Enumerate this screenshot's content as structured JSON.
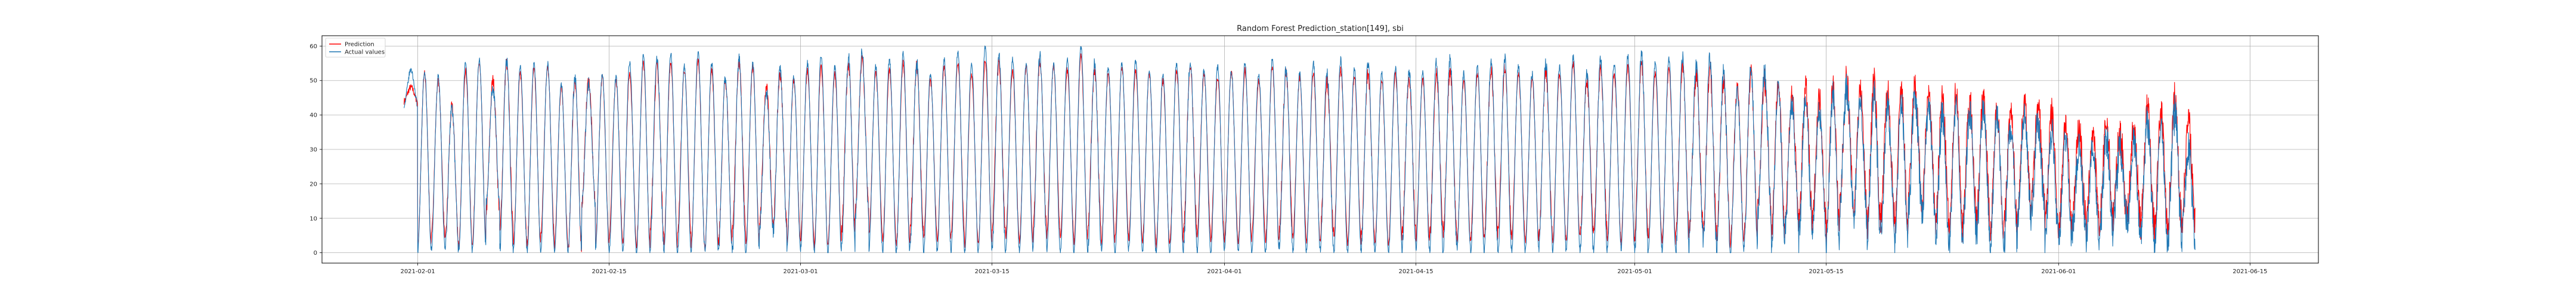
{
  "chart_data": {
    "type": "line",
    "title": "Random Forest Prediction_station[149], sbi",
    "xlabel": "",
    "ylabel": "",
    "x_range": [
      "2021-01-25",
      "2021-06-20"
    ],
    "x_ticks": [
      "2021-02-01",
      "2021-02-15",
      "2021-03-01",
      "2021-03-15",
      "2021-04-01",
      "2021-04-15",
      "2021-05-01",
      "2021-05-15",
      "2021-06-01",
      "2021-06-15"
    ],
    "ylim": [
      -3,
      63
    ],
    "y_ticks": [
      0,
      10,
      20,
      30,
      40,
      50,
      60
    ],
    "grid": true,
    "legend_position": "top-left",
    "colors": {
      "prediction": "#ff0000",
      "actual": "#1f77b4"
    },
    "data_span": [
      "2021-01-31",
      "2021-06-09"
    ],
    "samples_per_day": 48,
    "series": [
      {
        "name": "Prediction",
        "color": "#ff0000",
        "daily_min": [
          44,
          2,
          5,
          3,
          2,
          3,
          12,
          6,
          3,
          2,
          5,
          2,
          1,
          14,
          3,
          4,
          3,
          2,
          6,
          2,
          5,
          2,
          1,
          3,
          6,
          2,
          9,
          8,
          3,
          4,
          2,
          3,
          6,
          12,
          5,
          3,
          2,
          6,
          4,
          3,
          5,
          2,
          3,
          6,
          4,
          3,
          7,
          5,
          4,
          3,
          6,
          3,
          5,
          4,
          3,
          2,
          3,
          6,
          5,
          4,
          4,
          3,
          5,
          3,
          6,
          4,
          3,
          5,
          4,
          3,
          5,
          2,
          3,
          6,
          4,
          5,
          6,
          3,
          4,
          5,
          6,
          4,
          3,
          5,
          3,
          4,
          5,
          6,
          4,
          3,
          5,
          4,
          3,
          5,
          8,
          6,
          4,
          3,
          5,
          12,
          6,
          10,
          8,
          9,
          5,
          14,
          12,
          8,
          10,
          6,
          15,
          12,
          8,
          6,
          10,
          9,
          5,
          7,
          12,
          14,
          8,
          6,
          10,
          7,
          9,
          12,
          10,
          8,
          6,
          9,
          8
        ],
        "daily_max": [
          48,
          52,
          50,
          42,
          53,
          55,
          50,
          55,
          52,
          53,
          54,
          48,
          50,
          50,
          51,
          50,
          52,
          55,
          54,
          55,
          53,
          56,
          53,
          50,
          55,
          54,
          48,
          52,
          50,
          53,
          54,
          52,
          55,
          56,
          52,
          53,
          55,
          54,
          50,
          54,
          55,
          52,
          56,
          55,
          53,
          54,
          56,
          54,
          53,
          57,
          53,
          52,
          54,
          53,
          52,
          50,
          53,
          54,
          52,
          51,
          52,
          53,
          50,
          54,
          52,
          51,
          52,
          50,
          53,
          51,
          52,
          50,
          52,
          51,
          50,
          52,
          53,
          50,
          52,
          53,
          54,
          52,
          50,
          53,
          52,
          55,
          50,
          53,
          52,
          54,
          55,
          52,
          53,
          54,
          52,
          53,
          50,
          48,
          52,
          50,
          49,
          46,
          47,
          45,
          48,
          50,
          47,
          49,
          46,
          47,
          48,
          46,
          45,
          47,
          44,
          46,
          42,
          40,
          44,
          42,
          40,
          38,
          36,
          35,
          38,
          34,
          36,
          42,
          41,
          44,
          38
        ],
        "daily_noise": [
          1,
          1,
          1,
          2,
          1,
          1,
          2,
          2,
          1,
          1,
          1,
          1,
          2,
          2,
          1,
          1,
          1,
          1,
          2,
          1,
          1,
          1,
          1,
          2,
          2,
          1,
          2,
          2,
          1,
          1,
          1,
          1,
          2,
          2,
          1,
          1,
          1,
          2,
          1,
          1,
          1,
          1,
          1,
          2,
          1,
          1,
          2,
          1,
          1,
          1,
          2,
          1,
          1,
          1,
          1,
          1,
          1,
          2,
          1,
          1,
          1,
          1,
          1,
          1,
          2,
          1,
          1,
          2,
          1,
          1,
          2,
          1,
          1,
          2,
          1,
          2,
          2,
          1,
          1,
          2,
          2,
          1,
          1,
          2,
          1,
          1,
          2,
          2,
          1,
          1,
          2,
          1,
          1,
          2,
          3,
          3,
          3,
          2,
          3,
          4,
          3,
          4,
          5,
          4,
          4,
          5,
          4,
          5,
          5,
          4,
          5,
          4,
          5,
          4,
          5,
          5,
          4,
          5,
          4,
          5,
          5,
          4,
          5,
          4,
          5,
          6,
          5,
          5,
          4,
          6,
          5
        ]
      },
      {
        "name": "Actual values",
        "color": "#1f77b4",
        "daily_min": [
          43,
          0,
          1,
          1,
          0,
          1,
          14,
          1,
          1,
          0,
          1,
          0,
          0,
          14,
          1,
          0,
          0,
          0,
          2,
          0,
          0,
          1,
          0,
          1,
          0,
          0,
          7,
          6,
          1,
          1,
          0,
          0,
          1,
          10,
          1,
          0,
          0,
          1,
          0,
          1,
          0,
          0,
          1,
          0,
          1,
          0,
          3,
          0,
          0,
          0,
          1,
          0,
          0,
          1,
          0,
          0,
          0,
          1,
          0,
          0,
          1,
          0,
          0,
          0,
          2,
          0,
          1,
          0,
          0,
          0,
          1,
          0,
          0,
          2,
          1,
          0,
          2,
          1,
          0,
          1,
          0,
          0,
          1,
          2,
          0,
          1,
          0,
          0,
          2,
          1,
          0,
          1,
          0,
          0,
          5,
          2,
          1,
          0,
          1,
          10,
          1,
          7,
          4,
          6,
          1,
          12,
          9,
          3,
          7,
          2,
          12,
          10,
          3,
          2,
          6,
          5,
          1,
          3,
          10,
          12,
          4,
          2,
          7,
          3,
          5,
          10,
          6,
          4,
          2,
          6,
          4
        ],
        "daily_max": [
          53,
          53,
          51,
          42,
          55,
          56,
          48,
          56,
          54,
          55,
          55,
          49,
          51,
          49,
          52,
          51,
          55,
          57,
          57,
          58,
          54,
          58,
          55,
          51,
          56,
          55,
          47,
          53,
          51,
          55,
          57,
          54,
          57,
          58,
          54,
          56,
          58,
          55,
          52,
          56,
          58,
          55,
          60,
          57,
          56,
          55,
          57,
          55,
          56,
          60,
          55,
          54,
          55,
          56,
          53,
          52,
          55,
          56,
          53,
          54,
          53,
          55,
          52,
          56,
          53,
          52,
          55,
          52,
          56,
          53,
          55,
          52,
          54,
          53,
          52,
          55,
          56,
          52,
          54,
          55,
          56,
          54,
          52,
          55,
          54,
          57,
          52,
          56,
          55,
          57,
          58,
          55,
          56,
          57,
          54,
          56,
          52,
          47,
          54,
          52,
          48,
          44,
          45,
          41,
          46,
          48,
          44,
          47,
          42,
          44,
          45,
          42,
          40,
          43,
          41,
          42,
          40,
          36,
          40,
          38,
          35,
          33,
          30,
          31,
          33,
          30,
          32,
          38,
          36,
          40,
          30
        ],
        "daily_noise": [
          1,
          1,
          1,
          2,
          1,
          1,
          2,
          2,
          1,
          1,
          1,
          1,
          2,
          2,
          1,
          1,
          1,
          1,
          2,
          1,
          1,
          1,
          1,
          2,
          2,
          1,
          2,
          2,
          1,
          1,
          1,
          1,
          2,
          2,
          1,
          1,
          1,
          2,
          1,
          1,
          1,
          1,
          1,
          2,
          1,
          1,
          2,
          1,
          1,
          1,
          2,
          1,
          1,
          1,
          1,
          1,
          1,
          2,
          1,
          1,
          1,
          1,
          1,
          1,
          2,
          1,
          1,
          2,
          1,
          1,
          2,
          1,
          1,
          2,
          1,
          2,
          2,
          1,
          1,
          2,
          2,
          1,
          1,
          2,
          1,
          1,
          2,
          2,
          1,
          1,
          2,
          1,
          1,
          2,
          3,
          3,
          3,
          2,
          3,
          4,
          3,
          4,
          5,
          4,
          4,
          5,
          4,
          5,
          5,
          4,
          5,
          4,
          5,
          4,
          5,
          5,
          4,
          5,
          4,
          5,
          5,
          4,
          5,
          4,
          5,
          6,
          5,
          5,
          4,
          6,
          5
        ]
      }
    ]
  }
}
